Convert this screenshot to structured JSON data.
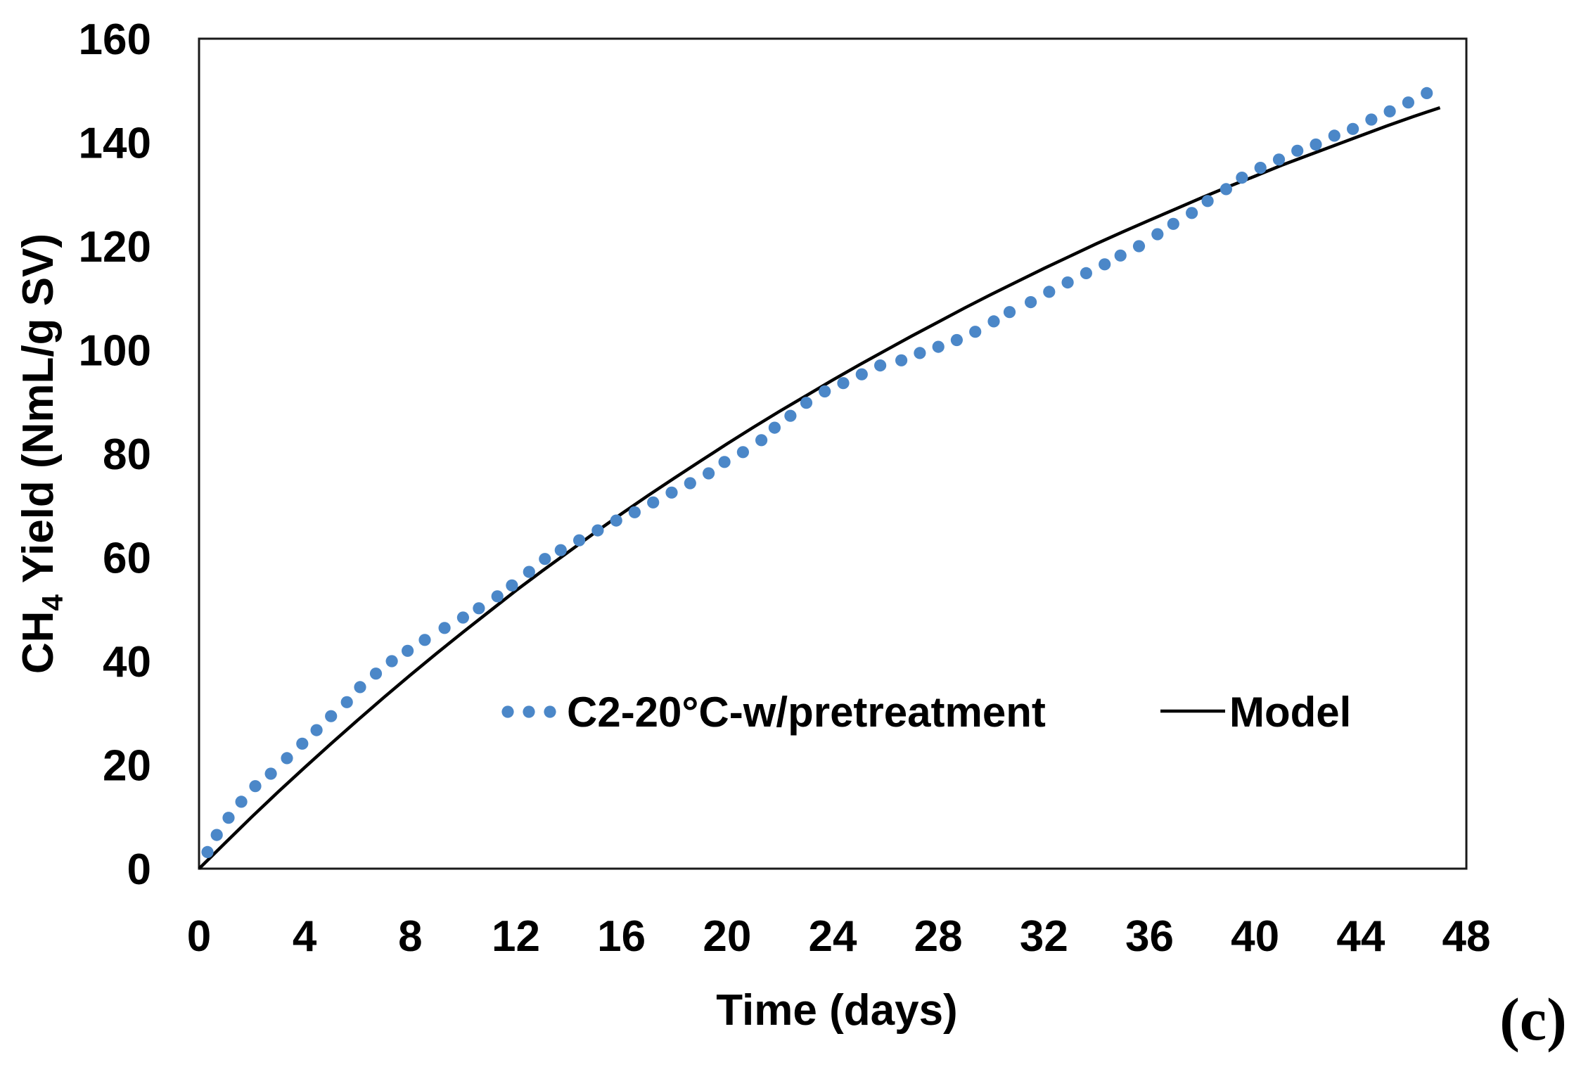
{
  "figure": {
    "panel_label": "(c)",
    "background_color": "#ffffff",
    "frame_color": "#1a1a1a"
  },
  "chart_data": {
    "type": "scatter",
    "title": "",
    "xlabel": "Time (days)",
    "ylabel_parts": {
      "prefix": "CH",
      "subscript": "4",
      "suffix": "  Yield (NmL/g SV)"
    },
    "ylabel_text": "CH4 Yield (NmL/g SV)",
    "xlim": [
      0,
      48
    ],
    "ylim": [
      0,
      160
    ],
    "x_ticks": [
      0,
      4,
      8,
      12,
      16,
      20,
      24,
      28,
      32,
      36,
      40,
      44,
      48
    ],
    "y_ticks": [
      0,
      20,
      40,
      60,
      80,
      100,
      120,
      140,
      160
    ],
    "grid": false,
    "legend_position": "inside lower-center",
    "series": [
      {
        "name": "C2-20°C-w/pretreatment",
        "style": "round-dot",
        "color": "#4B87C8",
        "points": [
          [
            0.32,
            3.2
          ],
          [
            0.67,
            6.5
          ],
          [
            1.12,
            9.8
          ],
          [
            1.6,
            12.9
          ],
          [
            2.13,
            15.9
          ],
          [
            2.72,
            18.3
          ],
          [
            3.33,
            21.3
          ],
          [
            3.91,
            24.1
          ],
          [
            4.45,
            26.7
          ],
          [
            5.0,
            29.4
          ],
          [
            5.6,
            32.1
          ],
          [
            6.1,
            35.0
          ],
          [
            6.7,
            37.6
          ],
          [
            7.3,
            40.0
          ],
          [
            7.9,
            42.0
          ],
          [
            8.55,
            44.1
          ],
          [
            9.3,
            46.4
          ],
          [
            10.0,
            48.4
          ],
          [
            10.6,
            50.2
          ],
          [
            11.3,
            52.5
          ],
          [
            11.85,
            54.6
          ],
          [
            12.5,
            57.2
          ],
          [
            13.1,
            59.7
          ],
          [
            13.7,
            61.4
          ],
          [
            14.4,
            63.3
          ],
          [
            15.1,
            65.2
          ],
          [
            15.8,
            67.1
          ],
          [
            16.5,
            68.7
          ],
          [
            17.2,
            70.6
          ],
          [
            17.9,
            72.5
          ],
          [
            18.6,
            74.3
          ],
          [
            19.3,
            76.2
          ],
          [
            19.9,
            78.4
          ],
          [
            20.6,
            80.3
          ],
          [
            21.3,
            82.6
          ],
          [
            21.8,
            85.0
          ],
          [
            22.4,
            87.3
          ],
          [
            23.0,
            89.8
          ],
          [
            23.7,
            92.0
          ],
          [
            24.4,
            93.6
          ],
          [
            25.1,
            95.3
          ],
          [
            25.8,
            97.0
          ],
          [
            26.6,
            98.0
          ],
          [
            27.3,
            99.4
          ],
          [
            28.0,
            100.6
          ],
          [
            28.7,
            101.9
          ],
          [
            29.4,
            103.5
          ],
          [
            30.1,
            105.5
          ],
          [
            30.7,
            107.3
          ],
          [
            31.5,
            109.2
          ],
          [
            32.2,
            111.2
          ],
          [
            32.9,
            113.0
          ],
          [
            33.6,
            114.8
          ],
          [
            34.3,
            116.5
          ],
          [
            34.9,
            118.2
          ],
          [
            35.6,
            120.0
          ],
          [
            36.3,
            122.3
          ],
          [
            36.9,
            124.3
          ],
          [
            37.6,
            126.4
          ],
          [
            38.2,
            128.7
          ],
          [
            38.9,
            131.0
          ],
          [
            39.5,
            133.2
          ],
          [
            40.2,
            135.1
          ],
          [
            40.9,
            136.7
          ],
          [
            41.6,
            138.4
          ],
          [
            42.3,
            139.6
          ],
          [
            43.0,
            141.3
          ],
          [
            43.7,
            142.6
          ],
          [
            44.4,
            144.4
          ],
          [
            45.1,
            146.0
          ],
          [
            45.8,
            147.7
          ],
          [
            46.5,
            149.5
          ]
        ]
      },
      {
        "name": "Model",
        "style": "solid-line",
        "color": "#000000",
        "points": [
          [
            0,
            0
          ],
          [
            1,
            5.0
          ],
          [
            2,
            10.0
          ],
          [
            3,
            14.8
          ],
          [
            4,
            19.5
          ],
          [
            5,
            24.1
          ],
          [
            6,
            28.6
          ],
          [
            7,
            33.0
          ],
          [
            8,
            37.3
          ],
          [
            9,
            41.5
          ],
          [
            10,
            45.6
          ],
          [
            11,
            49.6
          ],
          [
            12,
            53.6
          ],
          [
            13,
            57.4
          ],
          [
            14,
            61.1
          ],
          [
            15,
            64.8
          ],
          [
            16,
            68.4
          ],
          [
            17,
            71.9
          ],
          [
            18,
            75.3
          ],
          [
            19,
            78.6
          ],
          [
            20,
            81.9
          ],
          [
            21,
            85.1
          ],
          [
            22,
            88.2
          ],
          [
            23,
            91.2
          ],
          [
            24,
            94.2
          ],
          [
            25,
            97.1
          ],
          [
            26,
            99.9
          ],
          [
            27,
            102.7
          ],
          [
            28,
            105.4
          ],
          [
            29,
            108.1
          ],
          [
            30,
            110.7
          ],
          [
            31,
            113.2
          ],
          [
            32,
            115.7
          ],
          [
            33,
            118.1
          ],
          [
            34,
            120.5
          ],
          [
            35,
            122.8
          ],
          [
            36,
            125.0
          ],
          [
            37,
            127.2
          ],
          [
            38,
            129.4
          ],
          [
            39,
            131.5
          ],
          [
            40,
            133.5
          ],
          [
            41,
            135.6
          ],
          [
            42,
            137.5
          ],
          [
            43,
            139.4
          ],
          [
            44,
            141.3
          ],
          [
            45,
            143.2
          ],
          [
            46,
            145.0
          ],
          [
            47,
            146.7
          ]
        ]
      }
    ],
    "legend": {
      "items": [
        {
          "label": "C2-20°C-w/pretreatment",
          "swatch": "dots",
          "color": "#4B87C8"
        },
        {
          "label": "Model",
          "swatch": "line",
          "color": "#000000"
        }
      ]
    }
  }
}
